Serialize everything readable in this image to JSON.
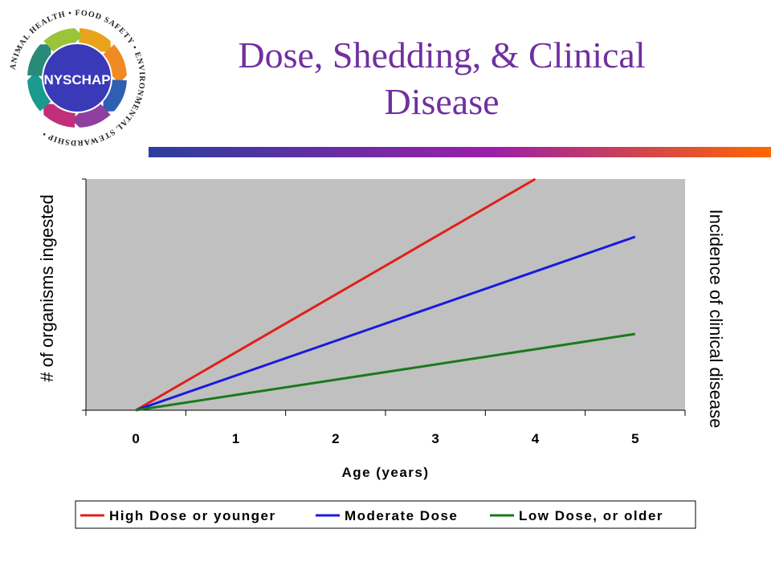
{
  "slide": {
    "title_line1": "Dose, Shedding, & Clinical",
    "title_line2": "Disease",
    "colors": {
      "title": "#7030a0",
      "bar_start": "#2c3e9e",
      "bar_mid": "#9b1fa8",
      "bar_end": "#ff6600"
    }
  },
  "logo": {
    "center_text": "NYSCHAP",
    "ring_text": "ANIMAL HEALTH • FOOD SAFETY • ENVIRONMENTAL STEWARDSHIP •",
    "colors": {
      "center": "#3a3ab8",
      "arrows": [
        "#e8a31a",
        "#f08a24",
        "#2f5fb3",
        "#8e3fa0",
        "#c0307a",
        "#1a9a8f",
        "#2a8a7a",
        "#9cc43a"
      ]
    }
  },
  "chart_data": {
    "type": "line",
    "title": "",
    "xlabel": "Age (years)",
    "ylabel": "# of organisms ingested",
    "ylabel_right": "Incidence of clinical disease",
    "x_ticks": [
      "0",
      "1",
      "2",
      "3",
      "4",
      "5"
    ],
    "xlim": [
      -0.5,
      5.5
    ],
    "ylim": [
      0,
      100
    ],
    "grid": false,
    "background_color": "#c0c0c0",
    "legend_position": "bottom",
    "series": [
      {
        "name": "High Dose or younger",
        "color": "#e0201b",
        "x": [
          0,
          4
        ],
        "y": [
          0,
          100
        ]
      },
      {
        "name": "Moderate Dose",
        "color": "#1a1adc",
        "x": [
          0,
          5
        ],
        "y": [
          0,
          75
        ]
      },
      {
        "name": "Low Dose, or older",
        "color": "#1a7a1a",
        "x": [
          0,
          5
        ],
        "y": [
          0,
          33
        ]
      }
    ]
  }
}
